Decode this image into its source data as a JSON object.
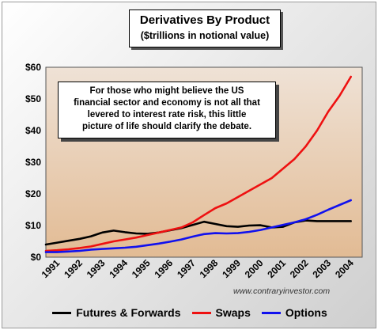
{
  "title": "Derivatives By Product",
  "subtitle": "($trillions in notional value)",
  "annotation": [
    "For those who might believe the US",
    "financial sector and economy is not all that",
    "levered to interest rate risk, this little",
    "picture of life should clarify the debate."
  ],
  "watermark": "www.contraryinvestor.com",
  "chart_data": {
    "type": "line",
    "title": "Derivatives By Product",
    "subtitle": "($trillions in notional value)",
    "xlabel": "",
    "ylabel": "",
    "ylim": [
      0,
      60
    ],
    "y_ticks": [
      "$0",
      "$10",
      "$20",
      "$30",
      "$40",
      "$50",
      "$60"
    ],
    "x_ticks": [
      "1991",
      "1992",
      "1993",
      "1994",
      "1995",
      "1996",
      "1997",
      "1998",
      "1999",
      "2000",
      "2001",
      "2002",
      "2003",
      "2004"
    ],
    "grid": false,
    "legend_position": "bottom",
    "x": [
      1991.0,
      1991.5,
      1992.0,
      1992.5,
      1993.0,
      1993.5,
      1994.0,
      1994.5,
      1995.0,
      1995.5,
      1996.0,
      1996.5,
      1997.0,
      1997.5,
      1998.0,
      1998.5,
      1999.0,
      1999.5,
      2000.0,
      2000.5,
      2001.0,
      2001.5,
      2002.0,
      2002.5,
      2003.0,
      2003.5,
      2004.0,
      2004.5
    ],
    "series": [
      {
        "name": "Futures & Forwards",
        "color": "#000000",
        "values": [
          4.0,
          4.6,
          5.2,
          5.8,
          6.6,
          7.8,
          8.4,
          7.9,
          7.5,
          7.4,
          7.8,
          8.5,
          9.2,
          10.2,
          11.2,
          10.5,
          9.8,
          9.6,
          10.0,
          10.1,
          9.4,
          9.6,
          11.0,
          11.6,
          11.4,
          11.4,
          11.4,
          11.4
        ]
      },
      {
        "name": "Swaps",
        "color": "#ee1111",
        "values": [
          2.0,
          2.2,
          2.5,
          2.9,
          3.4,
          4.2,
          5.0,
          5.6,
          6.2,
          7.0,
          7.8,
          8.6,
          9.4,
          11.0,
          13.3,
          15.5,
          17.0,
          19.0,
          21.0,
          23.0,
          25.0,
          28.0,
          31.0,
          35.0,
          40.0,
          46.0,
          51.0,
          57.0
        ]
      },
      {
        "name": "Options",
        "color": "#1111ee",
        "values": [
          1.6,
          1.6,
          1.8,
          2.0,
          2.4,
          2.6,
          2.8,
          3.0,
          3.3,
          3.8,
          4.3,
          4.9,
          5.6,
          6.5,
          7.3,
          7.6,
          7.5,
          7.6,
          8.0,
          8.6,
          9.4,
          10.2,
          11.0,
          12.0,
          13.4,
          15.0,
          16.5,
          18.0
        ]
      }
    ]
  }
}
